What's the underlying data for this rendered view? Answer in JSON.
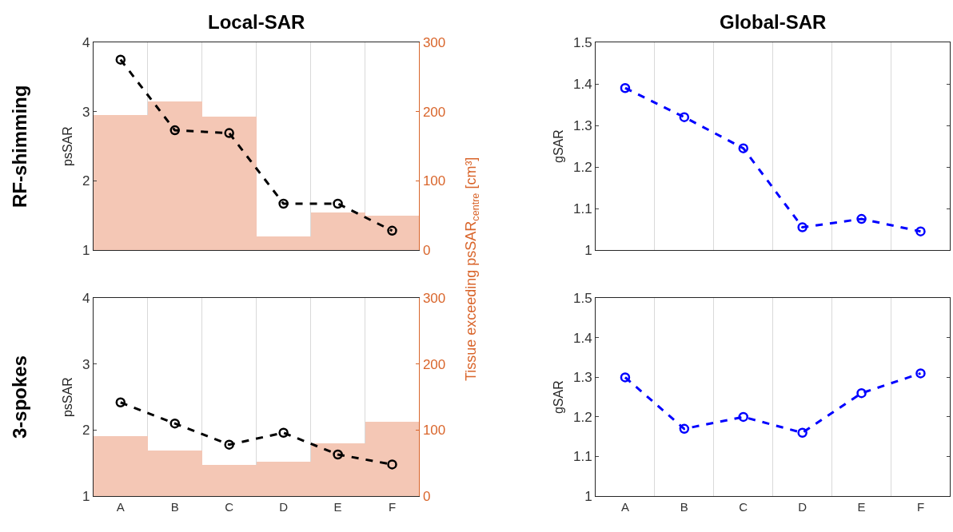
{
  "chart_data": [
    {
      "type": "line",
      "title": "Local-SAR",
      "ylabel": "psSAR",
      "y2label": "Tissue exceeding psSAR$_{centre}$ [cm³]",
      "annotations": [
        "RF-shimming"
      ],
      "categories": [
        null,
        null,
        null,
        null,
        null,
        null
      ],
      "ylim": [
        1,
        4
      ],
      "yticks": [
        1,
        2,
        3,
        4
      ],
      "y2lim": [
        0,
        300
      ],
      "y2ticks": [
        0,
        100,
        200,
        300
      ],
      "grid": "x",
      "tick_labels": "y",
      "marker": "circle",
      "line_style": "dashed",
      "series": [
        {
          "type": "bar",
          "axis": "y2",
          "color": "#f4c7b5",
          "values": [
            195,
            215,
            193,
            20,
            54,
            50
          ]
        },
        {
          "color": "#000000",
          "values": [
            3.75,
            2.73,
            2.69,
            1.67,
            1.67,
            1.28
          ]
        }
      ]
    },
    {
      "type": "line",
      "title": "Global-SAR",
      "ylabel": "gSAR",
      "categories": [
        null,
        null,
        null,
        null,
        null,
        null
      ],
      "ylim": [
        1,
        1.5
      ],
      "yticks": [
        1,
        1.1,
        1.2,
        1.3,
        1.4,
        1.5
      ],
      "grid": "x",
      "tick_labels": "y",
      "marker": "circle",
      "line_style": "dashed",
      "series": [
        {
          "color": "#0000ff",
          "values": [
            1.39,
            1.32,
            1.245,
            1.055,
            1.075,
            1.045
          ]
        }
      ]
    },
    {
      "type": "line",
      "ylabel": "psSAR",
      "annotations": [
        "3-spokes"
      ],
      "categories": [
        "A",
        "B",
        "C",
        "D",
        "E",
        "F"
      ],
      "ylim": [
        1,
        4
      ],
      "yticks": [
        1,
        2,
        3,
        4
      ],
      "y2lim": [
        0,
        300
      ],
      "y2ticks": [
        0,
        100,
        200,
        300
      ],
      "grid": "x",
      "marker": "circle",
      "line_style": "dashed",
      "series": [
        {
          "type": "bar",
          "axis": "y2",
          "color": "#f4c7b5",
          "values": [
            91,
            69,
            47,
            52,
            80,
            112
          ]
        },
        {
          "color": "#000000",
          "values": [
            2.42,
            2.1,
            1.78,
            1.96,
            1.63,
            1.48
          ]
        }
      ]
    },
    {
      "type": "line",
      "ylabel": "gSAR",
      "categories": [
        "A",
        "B",
        "C",
        "D",
        "E",
        "F"
      ],
      "ylim": [
        1,
        1.5
      ],
      "yticks": [
        1,
        1.1,
        1.2,
        1.3,
        1.4,
        1.5
      ],
      "grid": "x",
      "marker": "circle",
      "line_style": "dashed",
      "series": [
        {
          "color": "#0000ff",
          "values": [
            1.3,
            1.17,
            1.2,
            1.16,
            1.26,
            1.31
          ]
        }
      ]
    }
  ]
}
